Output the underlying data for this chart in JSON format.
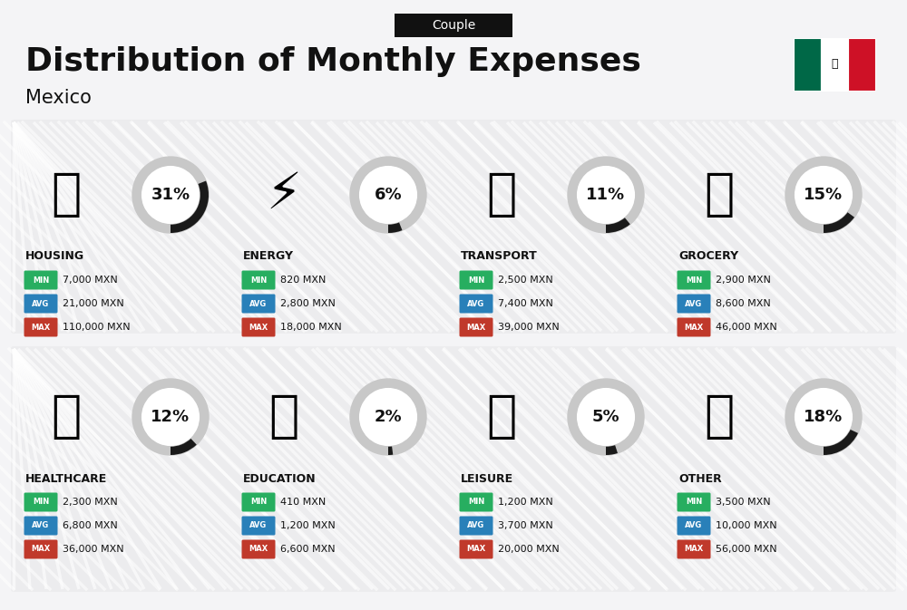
{
  "title": "Distribution of Monthly Expenses",
  "subtitle": "Mexico",
  "header_label": "Couple",
  "bg_color": "#f4f4f6",
  "panel_color": "#eaeaec",
  "stripe_color": "#e0e0e3",
  "categories": [
    {
      "name": "HOUSING",
      "pct": 31,
      "min": "7,000 MXN",
      "avg": "21,000 MXN",
      "max": "110,000 MXN",
      "icon": "🏗",
      "row": 0,
      "col": 0
    },
    {
      "name": "ENERGY",
      "pct": 6,
      "min": "820 MXN",
      "avg": "2,800 MXN",
      "max": "18,000 MXN",
      "icon": "⚡",
      "row": 0,
      "col": 1
    },
    {
      "name": "TRANSPORT",
      "pct": 11,
      "min": "2,500 MXN",
      "avg": "7,400 MXN",
      "max": "39,000 MXN",
      "icon": "🚌",
      "row": 0,
      "col": 2
    },
    {
      "name": "GROCERY",
      "pct": 15,
      "min": "2,900 MXN",
      "avg": "8,600 MXN",
      "max": "46,000 MXN",
      "icon": "🛒",
      "row": 0,
      "col": 3
    },
    {
      "name": "HEALTHCARE",
      "pct": 12,
      "min": "2,300 MXN",
      "avg": "6,800 MXN",
      "max": "36,000 MXN",
      "icon": "💚",
      "row": 1,
      "col": 0
    },
    {
      "name": "EDUCATION",
      "pct": 2,
      "min": "410 MXN",
      "avg": "1,200 MXN",
      "max": "6,600 MXN",
      "icon": "🎓",
      "row": 1,
      "col": 1
    },
    {
      "name": "LEISURE",
      "pct": 5,
      "min": "1,200 MXN",
      "avg": "3,700 MXN",
      "max": "20,000 MXN",
      "icon": "🛍",
      "row": 1,
      "col": 2
    },
    {
      "name": "OTHER",
      "pct": 18,
      "min": "3,500 MXN",
      "avg": "10,000 MXN",
      "max": "56,000 MXN",
      "icon": "💰",
      "row": 1,
      "col": 3
    }
  ],
  "min_color": "#27ae60",
  "avg_color": "#2980b9",
  "max_color": "#c0392b",
  "text_color": "#111111",
  "circle_ring_color": "#c8c8c8",
  "circle_arc_color": "#1a1a1a",
  "pct_fontsize": 13,
  "name_fontsize": 9,
  "stat_label_fontsize": 6,
  "stat_value_fontsize": 8
}
